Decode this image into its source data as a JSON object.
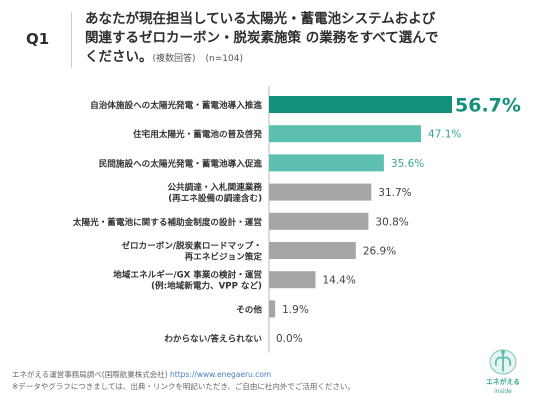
{
  "question": {
    "label": "Q1",
    "text": "あなたが現在担当している太陽光・蓄電池システムおよび\n関連するゼロカーボン・脱炭素施策 の業務をすべて選んで\nください。",
    "meta_multi": "(複数回答)",
    "meta_n": "(n=104)"
  },
  "chart_data": {
    "type": "bar",
    "orientation": "horizontal",
    "categories": [
      [
        "自治体施設への太陽光発電・蓄電池導入推進"
      ],
      [
        "住宅用太陽光・蓄電池の普及啓発"
      ],
      [
        "民間施設への太陽光発電・蓄電池導入促進"
      ],
      [
        "公共調達・入札関連業務",
        "(再エネ設備の調達含む)"
      ],
      [
        "太陽光・蓄電池に関する補助金制度の設計・運営"
      ],
      [
        "ゼロカーボン/脱炭素ロードマップ・",
        "再エネビジョン策定"
      ],
      [
        "地域エネルギー/GX 事業の検討・運営",
        "(例:地域新電力、VPP など)"
      ],
      [
        "その他"
      ],
      [
        "わからない/答えられない"
      ]
    ],
    "values": [
      56.7,
      47.1,
      35.6,
      31.7,
      30.8,
      26.9,
      14.4,
      1.9,
      0.0
    ],
    "value_labels": [
      "56.7%",
      "47.1%",
      "35.6%",
      "31.7%",
      "30.8%",
      "26.9%",
      "14.4%",
      "1.9%",
      "0.0%"
    ],
    "xlim": [
      0,
      56.7
    ],
    "colors": [
      "#14917c",
      "#5cbfb0",
      "#5cbfb0",
      "#a6a6a6",
      "#a6a6a6",
      "#a6a6a6",
      "#a6a6a6",
      "#a6a6a6",
      "#a6a6a6"
    ],
    "label_colors": [
      "#14917c",
      "#3aa595",
      "#3aa595",
      "#444444",
      "#444444",
      "#444444",
      "#444444",
      "#444444",
      "#444444"
    ],
    "grid": false
  },
  "footer": {
    "source": "エネがえる運営事務局調べ(国際航業株式会社)",
    "url": "https://www.enegaeru.com",
    "note": "※データやグラフにつきましては、出典・リンクを明記いただき、ご自由に社内外でご活用ください。"
  },
  "logo": {
    "line1": "エネがえる",
    "line2": "inside",
    "icon": "enegaeru-logo-icon"
  }
}
